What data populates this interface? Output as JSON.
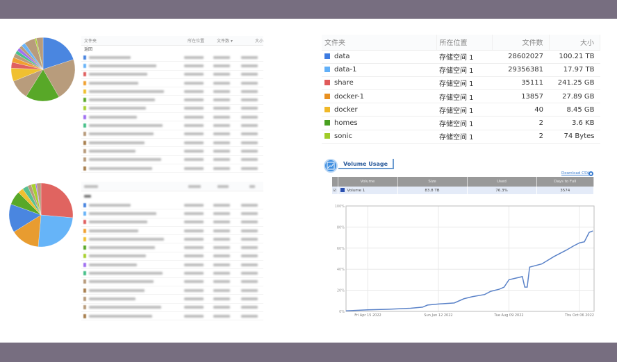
{
  "pies": [
    {
      "slices": [
        {
          "color": "#4a86e0",
          "pct": 20
        },
        {
          "color": "#b89c7c",
          "pct": 21.7
        },
        {
          "color": "#58a828",
          "pct": 17.2
        },
        {
          "color": "#b89c7c",
          "pct": 10
        },
        {
          "color": "#f0c030",
          "pct": 6.7
        },
        {
          "color": "#e06060",
          "pct": 3
        },
        {
          "color": "#f0a030",
          "pct": 2.5
        },
        {
          "color": "#b89c7c",
          "pct": 2.2
        },
        {
          "color": "#48c08a",
          "pct": 1.7
        },
        {
          "color": "#a070f0",
          "pct": 1.7
        },
        {
          "color": "#b89c7c",
          "pct": 1.6
        },
        {
          "color": "#6ab4f8",
          "pct": 2
        },
        {
          "color": "#b89c7c",
          "pct": 5.5
        },
        {
          "color": "#a8d030",
          "pct": 0.8
        },
        {
          "color": "#b89c7c",
          "pct": 3.4
        }
      ]
    },
    {
      "slices": [
        {
          "color": "#e06460",
          "pct": 26.4
        },
        {
          "color": "#66b4f8",
          "pct": 25
        },
        {
          "color": "#e89c30",
          "pct": 14.7
        },
        {
          "color": "#4a86e0",
          "pct": 14.4
        },
        {
          "color": "#58a828",
          "pct": 7
        },
        {
          "color": "#f0c030",
          "pct": 2.8
        },
        {
          "color": "#58c090",
          "pct": 2.8
        },
        {
          "color": "#b89c7c",
          "pct": 1.9
        },
        {
          "color": "#a8d030",
          "pct": 2.2
        },
        {
          "color": "#a070f0",
          "pct": 0.6
        },
        {
          "color": "#b89c7c",
          "pct": 2.2
        }
      ]
    }
  ],
  "top_left_table": {
    "headers": [
      "文件夹",
      "所在位置",
      "文件数 ▾",
      "大小"
    ],
    "back_label": "返回",
    "row_colors": [
      "#4a86e0",
      "#6ab4f8",
      "#e06060",
      "#f0a030",
      "#f0c030",
      "#58a828",
      "#a8d030",
      "#a070f0",
      "#48c08a",
      "#b89c7c",
      "#a88050",
      "#b89c7c",
      "#b89c7c",
      "#a88050"
    ]
  },
  "bottom_left_table": {
    "row_colors": [
      "#4a86e0",
      "#6ab4f8",
      "#e06060",
      "#f0a030",
      "#f0c030",
      "#58a828",
      "#a8d030",
      "#a070f0",
      "#48c08a",
      "#b89c7c",
      "#a88050",
      "#b89c7c",
      "#b89c7c",
      "#a88050"
    ]
  },
  "folder_table": {
    "headers": [
      "文件夹",
      "所在位置",
      "文件数",
      "大小"
    ],
    "rows": [
      {
        "name": "data",
        "color": "#3d7be0",
        "location": "存储空间 1",
        "files": "28602027",
        "size": "100.21 TB"
      },
      {
        "name": "data-1",
        "color": "#62b0f8",
        "location": "存储空间 1",
        "files": "29356381",
        "size": "17.97 TB"
      },
      {
        "name": "share",
        "color": "#e05a5a",
        "location": "存储空间 1",
        "files": "35111",
        "size": "241.25 GB"
      },
      {
        "name": "docker-1",
        "color": "#e89020",
        "location": "存储空间 1",
        "files": "13857",
        "size": "27.89 GB"
      },
      {
        "name": "docker",
        "color": "#f0b828",
        "location": "存储空间 1",
        "files": "40",
        "size": "8.45 GB"
      },
      {
        "name": "homes",
        "color": "#48a020",
        "location": "存储空间 1",
        "files": "2",
        "size": "3.6 KB"
      },
      {
        "name": "sonic",
        "color": "#a0cc28",
        "location": "存储空间 1",
        "files": "2",
        "size": "74 Bytes"
      }
    ]
  },
  "volume_usage": {
    "title": "Volume Usage",
    "download_label": "Download CSV",
    "headers": [
      "Volume",
      "Size",
      "Used",
      "Days to Full"
    ],
    "row": {
      "checked": true,
      "color": "#2a4fb0",
      "volume": "Volume 1",
      "size": "83.8 TB",
      "used": "76.3%",
      "days": "3574"
    }
  },
  "chart_data": {
    "type": "line",
    "x_tick_labels": [
      "Fri Apr 15 2022",
      "Sun Jun 12 2022",
      "Tue Aug 09 2022",
      "Thu Oct 06 2022"
    ],
    "x_ticks": [
      "2022-04-15",
      "2022-06-12",
      "2022-08-09",
      "2022-10-06"
    ],
    "xlim": [
      "2022-03-28",
      "2022-10-18"
    ],
    "y_tick_labels": [
      "0%",
      "20%",
      "40%",
      "60%",
      "80%",
      "100%"
    ],
    "ylim": [
      0,
      100
    ],
    "grid": true,
    "line_color": "#5a82c8",
    "points": [
      [
        "2022-03-28",
        0.5
      ],
      [
        "2022-04-15",
        1.5
      ],
      [
        "2022-05-01",
        2
      ],
      [
        "2022-05-20",
        3
      ],
      [
        "2022-05-30",
        4
      ],
      [
        "2022-06-03",
        6
      ],
      [
        "2022-06-12",
        7
      ],
      [
        "2022-06-25",
        8
      ],
      [
        "2022-07-03",
        12
      ],
      [
        "2022-07-10",
        14
      ],
      [
        "2022-07-20",
        16
      ],
      [
        "2022-07-25",
        19
      ],
      [
        "2022-08-01",
        21
      ],
      [
        "2022-08-05",
        23
      ],
      [
        "2022-08-09",
        30
      ],
      [
        "2022-08-20",
        33
      ],
      [
        "2022-08-22",
        23
      ],
      [
        "2022-08-24",
        23
      ],
      [
        "2022-08-26",
        42
      ],
      [
        "2022-09-05",
        45
      ],
      [
        "2022-09-15",
        52
      ],
      [
        "2022-09-25",
        58
      ],
      [
        "2022-10-01",
        62
      ],
      [
        "2022-10-06",
        65
      ],
      [
        "2022-10-10",
        66
      ],
      [
        "2022-10-14",
        75
      ],
      [
        "2022-10-17",
        76.3
      ]
    ]
  }
}
